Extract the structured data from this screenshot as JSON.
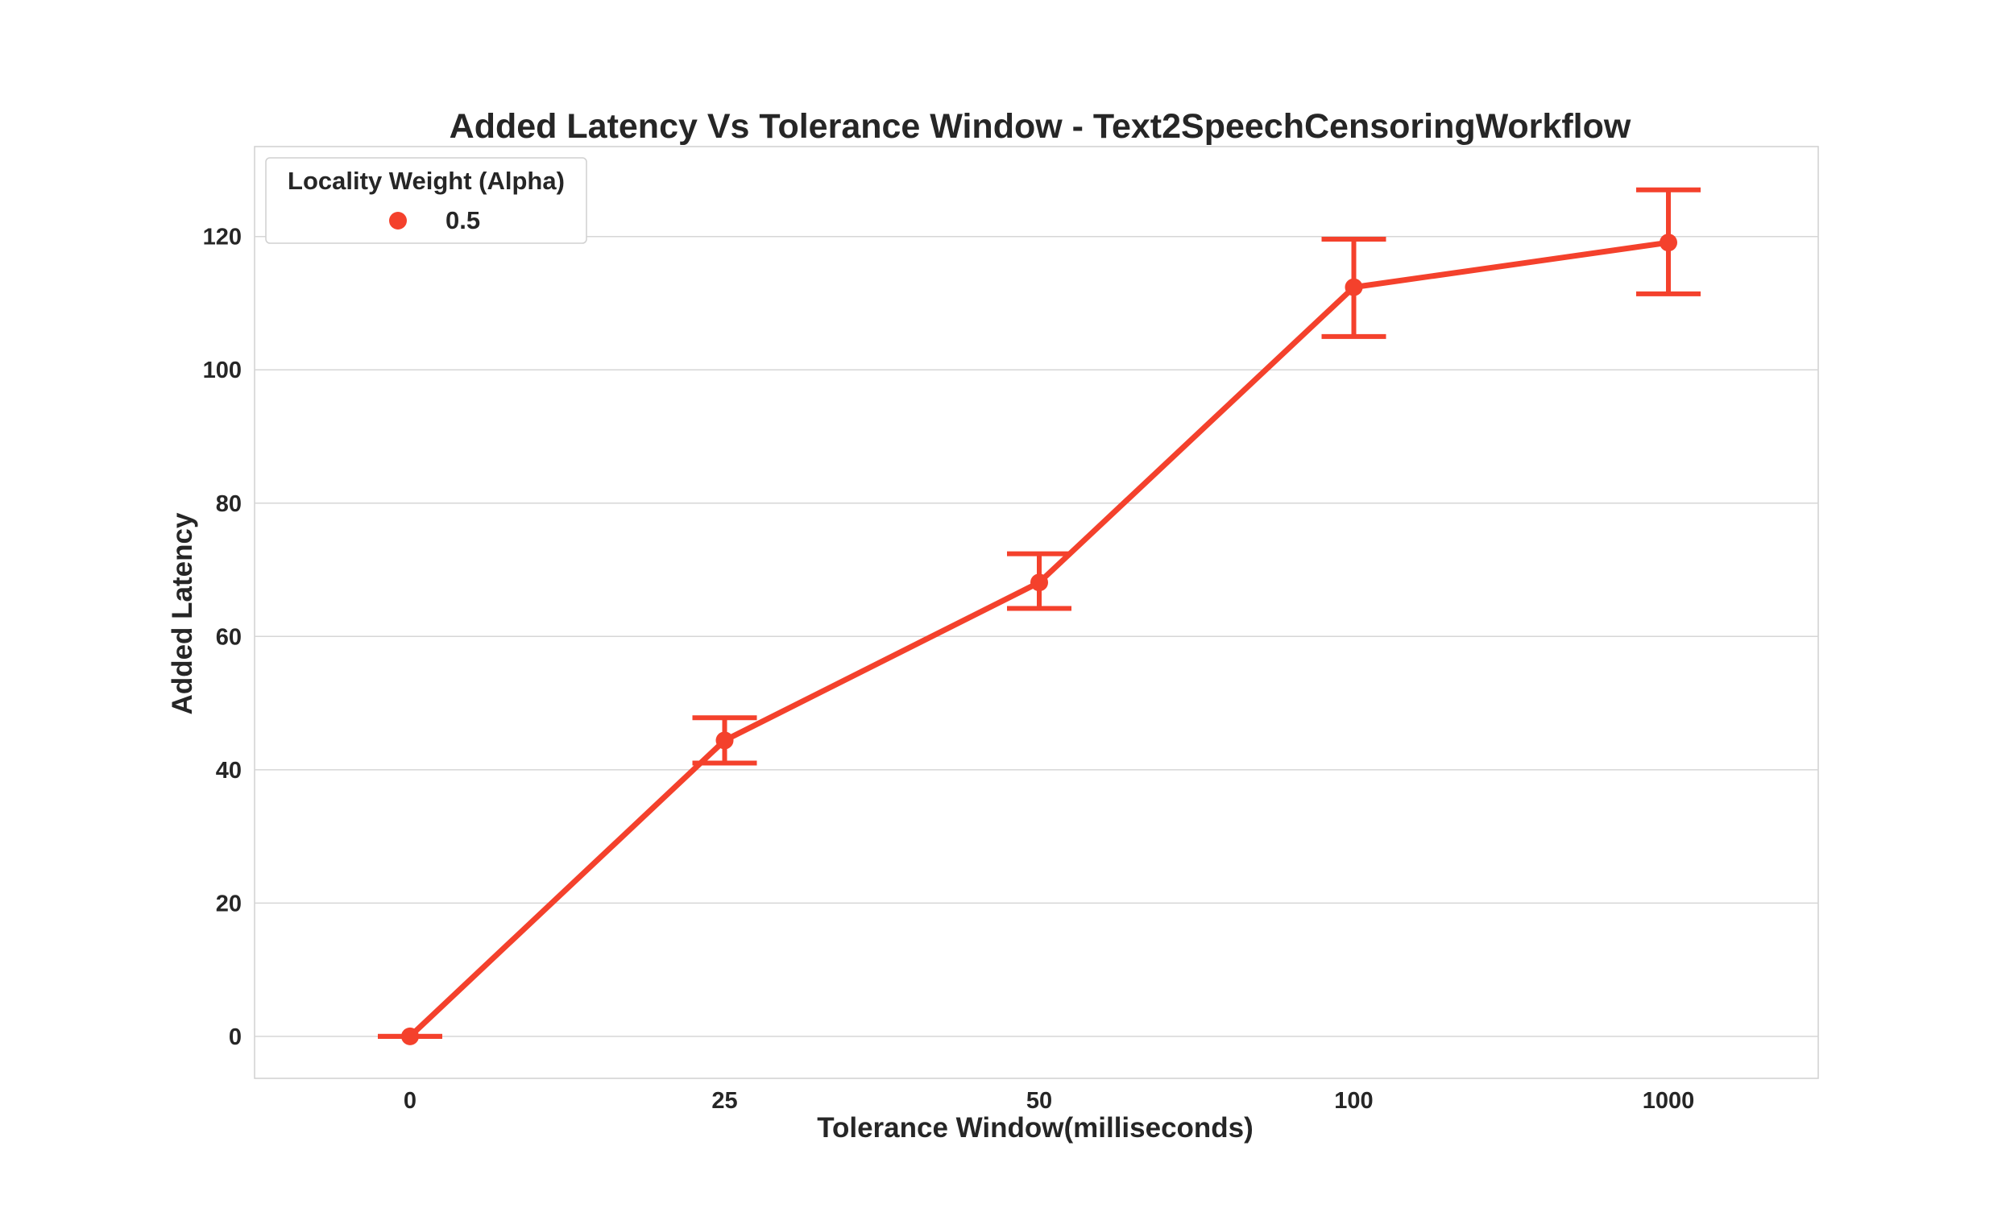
{
  "chart_data": {
    "type": "line",
    "title": "Added Latency Vs Tolerance Window - Text2SpeechCensoringWorkflow",
    "xlabel": "Tolerance Window(milliseconds)",
    "ylabel": "Added Latency",
    "categories": [
      "0",
      "25",
      "50",
      "100",
      "1000"
    ],
    "y_ticks": [
      0,
      20,
      40,
      60,
      80,
      100,
      120
    ],
    "ylim": [
      -6.3,
      133.5
    ],
    "grid": true,
    "legend": {
      "title": "Locality Weight (Alpha)",
      "placement": "top-left"
    },
    "series": [
      {
        "name": "0.5",
        "color": "#f4412c",
        "values": [
          0,
          44.4,
          68.1,
          112.4,
          119.1
        ],
        "error_low": [
          0,
          41.0,
          64.2,
          105.0,
          111.4
        ],
        "error_high": [
          0,
          47.8,
          72.4,
          119.6,
          127.0
        ]
      }
    ]
  }
}
